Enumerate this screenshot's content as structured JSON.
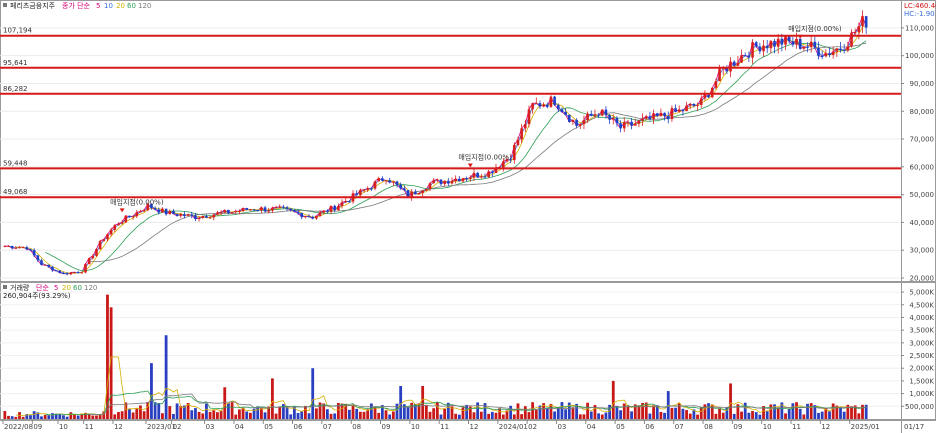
{
  "price_panel": {
    "legend": {
      "name": "페리츠금융지주",
      "label": "종가 단순",
      "periods": [
        "5",
        "10",
        "20",
        "60",
        "120"
      ],
      "period_colors": [
        "#d6007a",
        "#3a6fd8",
        "#d4b000",
        "#2e9e57",
        "#7a7a7a"
      ]
    },
    "readout": {
      "lc": "LC:460.40",
      "hc": "HC:-1.90"
    },
    "levels": [
      {
        "label": "107,194",
        "value": 107194
      },
      {
        "label": "95,641",
        "value": 95641
      },
      {
        "label": "86,282",
        "value": 86282
      },
      {
        "label": "59,448",
        "value": 59448
      },
      {
        "label": "49,068",
        "value": 49068
      }
    ],
    "annotations": [
      {
        "text": "매입지점(0.00%)",
        "xi": 32
      },
      {
        "text": "매입지점(0.00%)",
        "xi": 127
      },
      {
        "text": "매입지점(0.00%)",
        "xi": 217
      }
    ]
  },
  "volume_panel": {
    "legend": {
      "label": "거래량",
      "mode": "단순",
      "periods": [
        "5",
        "20",
        "60",
        "120"
      ],
      "period_colors": [
        "#d6007a",
        "#d4b000",
        "#2e9e57",
        "#7a7a7a"
      ]
    },
    "readout": "260,904주(93.29%)"
  },
  "x_axis": {
    "labels": [
      {
        "text": "2022/08",
        "i": 0
      },
      {
        "text": "09",
        "i": 8
      },
      {
        "text": "10",
        "i": 15
      },
      {
        "text": "11",
        "i": 22
      },
      {
        "text": "12",
        "i": 30
      },
      {
        "text": "2023/01",
        "i": 39
      },
      {
        "text": "02",
        "i": 46
      },
      {
        "text": "03",
        "i": 55
      },
      {
        "text": "04",
        "i": 63
      },
      {
        "text": "05",
        "i": 71
      },
      {
        "text": "06",
        "i": 79
      },
      {
        "text": "07",
        "i": 87
      },
      {
        "text": "08",
        "i": 95
      },
      {
        "text": "09",
        "i": 103
      },
      {
        "text": "10",
        "i": 111
      },
      {
        "text": "11",
        "i": 119
      },
      {
        "text": "12",
        "i": 127
      },
      {
        "text": "2024/01",
        "i": 135
      },
      {
        "text": "02",
        "i": 143
      },
      {
        "text": "03",
        "i": 151
      },
      {
        "text": "04",
        "i": 159
      },
      {
        "text": "05",
        "i": 167
      },
      {
        "text": "06",
        "i": 175
      },
      {
        "text": "07",
        "i": 183
      },
      {
        "text": "08",
        "i": 191
      },
      {
        "text": "09",
        "i": 199
      },
      {
        "text": "10",
        "i": 207
      },
      {
        "text": "11",
        "i": 215
      },
      {
        "text": "12",
        "i": 223
      },
      {
        "text": "2025/01",
        "i": 231
      }
    ],
    "end_label": "01/17"
  },
  "chart_data": [
    {
      "type": "line",
      "price_type": "candlestick",
      "x_unit": "week",
      "ylim": [
        20000,
        115000
      ],
      "y_ticks": [
        20000,
        30000,
        40000,
        50000,
        60000,
        70000,
        80000,
        90000,
        100000,
        110000
      ],
      "y_tick_labels": [
        "20,000",
        "30,000",
        "40,000",
        "50,000",
        "60,000",
        "70,000",
        "80,000",
        "90,000",
        "100,000",
        "110,000"
      ],
      "keypoints_week_close": [
        [
          0,
          31500
        ],
        [
          6,
          31000
        ],
        [
          10,
          25000
        ],
        [
          16,
          21500
        ],
        [
          21,
          22500
        ],
        [
          27,
          34500
        ],
        [
          31,
          40000
        ],
        [
          36,
          43500
        ],
        [
          39,
          46000
        ],
        [
          44,
          43500
        ],
        [
          52,
          42000
        ],
        [
          60,
          43500
        ],
        [
          68,
          45000
        ],
        [
          76,
          44500
        ],
        [
          84,
          42000
        ],
        [
          90,
          45500
        ],
        [
          98,
          51500
        ],
        [
          104,
          56500
        ],
        [
          110,
          49500
        ],
        [
          116,
          54000
        ],
        [
          124,
          56000
        ],
        [
          132,
          58000
        ],
        [
          138,
          64000
        ],
        [
          144,
          82000
        ],
        [
          150,
          84000
        ],
        [
          156,
          75000
        ],
        [
          162,
          80000
        ],
        [
          168,
          74000
        ],
        [
          176,
          77000
        ],
        [
          184,
          80000
        ],
        [
          190,
          83000
        ],
        [
          196,
          95000
        ],
        [
          202,
          101000
        ],
        [
          206,
          104000
        ],
        [
          212,
          105000
        ],
        [
          218,
          104000
        ],
        [
          224,
          101000
        ],
        [
          228,
          103000
        ],
        [
          231,
          107000
        ],
        [
          234,
          112000
        ]
      ],
      "moving_averages": [
        "5",
        "10",
        "20",
        "60",
        "120"
      ]
    },
    {
      "type": "bar",
      "name": "거래량",
      "ylim": [
        0,
        5200000
      ],
      "y_ticks": [
        500000,
        1000000,
        1500000,
        2000000,
        2500000,
        3000000,
        3500000,
        4000000,
        4500000,
        5000000
      ],
      "y_tick_labels": [
        "500,000",
        "1,000K",
        "1,500K",
        "2,000K",
        "2,500K",
        "3,000K",
        "3,500K",
        "4,000K",
        "4,500K",
        "5,000K"
      ],
      "spikes": [
        [
          28,
          4900000
        ],
        [
          29,
          4400000
        ],
        [
          40,
          2200000
        ],
        [
          44,
          3300000
        ],
        [
          73,
          1600000
        ],
        [
          84,
          2000000
        ],
        [
          60,
          1250000
        ],
        [
          108,
          1300000
        ],
        [
          114,
          1300000
        ],
        [
          166,
          1500000
        ],
        [
          181,
          1100000
        ],
        [
          198,
          1400000
        ]
      ]
    }
  ]
}
